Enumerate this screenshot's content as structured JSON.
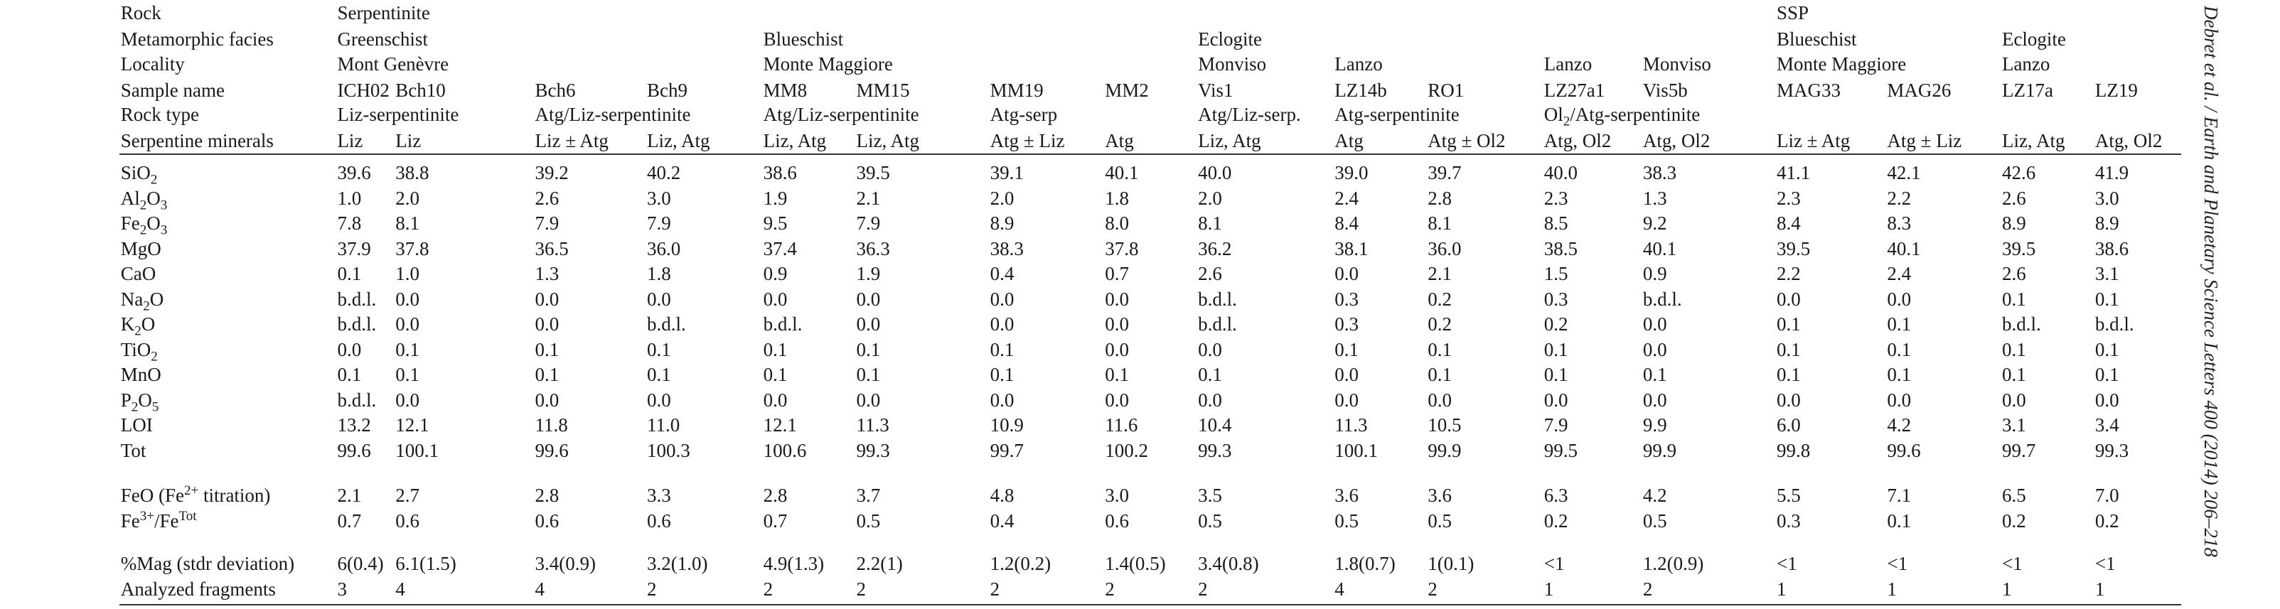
{
  "table": {
    "header_rows": [
      {
        "label": "Rock",
        "cells": [
          "Serpentinite",
          null,
          null,
          null,
          null,
          null,
          null,
          null,
          null,
          null,
          null,
          null,
          null,
          "SSP",
          null,
          null,
          null
        ]
      },
      {
        "label": "Metamorphic facies",
        "cells": [
          "Greenschist",
          null,
          null,
          null,
          "Blueschist",
          null,
          null,
          null,
          "Eclogite",
          null,
          null,
          null,
          null,
          "Blueschist",
          null,
          "Eclogite",
          null
        ]
      },
      {
        "label": "Locality",
        "cells": [
          "Mont Genèvre",
          null,
          null,
          null,
          "Monte Maggiore",
          null,
          null,
          null,
          "Monviso",
          "Lanzo",
          null,
          "Lanzo",
          "Monviso",
          "Monte Maggiore",
          null,
          "Lanzo",
          null
        ]
      },
      {
        "label": "Sample name",
        "cells": [
          "ICH02",
          "Bch10",
          "Bch6",
          "Bch9",
          "MM8",
          "MM15",
          "MM19",
          "MM2",
          "Vis1",
          "LZ14b",
          "RO1",
          "LZ27a1",
          "Vis5b",
          "MAG33",
          "MAG26",
          "LZ17a",
          "LZ19"
        ]
      },
      {
        "label": "Rock type",
        "cells": [
          "Liz-serpentinite",
          null,
          "Atg/Liz-serpentinite",
          null,
          "Atg/Liz-serpentinite",
          null,
          "Atg-serp",
          null,
          "Atg/Liz-serp.",
          "Atg-serpentinite",
          null,
          [
            {
              "text": "Ol"
            },
            {
              "sub": "2"
            },
            {
              "text": "/Atg-serpentinite"
            }
          ],
          null,
          null,
          null,
          null,
          null
        ]
      },
      {
        "label": "Serpentine minerals",
        "cells": [
          "Liz",
          "Liz",
          "Liz ± Atg",
          "Liz, Atg",
          "Liz, Atg",
          "Liz, Atg",
          "Atg ± Liz",
          "Atg",
          "Liz, Atg",
          "Atg",
          "Atg ± Ol2",
          "Atg, Ol2",
          "Atg, Ol2",
          "Liz ± Atg",
          "Atg ± Liz",
          "Liz, Atg",
          "Atg, Ol2"
        ]
      }
    ],
    "blocks": [
      [
        {
          "label": [
            {
              "text": "SiO"
            },
            {
              "sub": "2"
            }
          ],
          "values": [
            "39.6",
            "38.8",
            "39.2",
            "40.2",
            "38.6",
            "39.5",
            "39.1",
            "40.1",
            "40.0",
            "39.0",
            "39.7",
            "40.0",
            "38.3",
            "41.1",
            "42.1",
            "42.6",
            "41.9"
          ]
        },
        {
          "label": [
            {
              "text": "Al"
            },
            {
              "sub": "2"
            },
            {
              "text": "O"
            },
            {
              "sub": "3"
            }
          ],
          "values": [
            "1.0",
            "2.0",
            "2.6",
            "3.0",
            "1.9",
            "2.1",
            "2.0",
            "1.8",
            "2.0",
            "2.4",
            "2.8",
            "2.3",
            "1.3",
            "2.3",
            "2.2",
            "2.6",
            "3.0"
          ]
        },
        {
          "label": [
            {
              "text": "Fe"
            },
            {
              "sub": "2"
            },
            {
              "text": "O"
            },
            {
              "sub": "3"
            }
          ],
          "values": [
            "7.8",
            "8.1",
            "7.9",
            "7.9",
            "9.5",
            "7.9",
            "8.9",
            "8.0",
            "8.1",
            "8.4",
            "8.1",
            "8.5",
            "9.2",
            "8.4",
            "8.3",
            "8.9",
            "8.9"
          ]
        },
        {
          "label": "MgO",
          "values": [
            "37.9",
            "37.8",
            "36.5",
            "36.0",
            "37.4",
            "36.3",
            "38.3",
            "37.8",
            "36.2",
            "38.1",
            "36.0",
            "38.5",
            "40.1",
            "39.5",
            "40.1",
            "39.5",
            "38.6"
          ]
        },
        {
          "label": "CaO",
          "values": [
            "0.1",
            "1.0",
            "1.3",
            "1.8",
            "0.9",
            "1.9",
            "0.4",
            "0.7",
            "2.6",
            "0.0",
            "2.1",
            "1.5",
            "0.9",
            "2.2",
            "2.4",
            "2.6",
            "3.1"
          ]
        },
        {
          "label": [
            {
              "text": "Na"
            },
            {
              "sub": "2"
            },
            {
              "text": "O"
            }
          ],
          "values": [
            "b.d.l.",
            "0.0",
            "0.0",
            "0.0",
            "0.0",
            "0.0",
            "0.0",
            "0.0",
            "b.d.l.",
            "0.3",
            "0.2",
            "0.3",
            "b.d.l.",
            "0.0",
            "0.0",
            "0.1",
            "0.1"
          ]
        },
        {
          "label": [
            {
              "text": "K"
            },
            {
              "sub": "2"
            },
            {
              "text": "O"
            }
          ],
          "values": [
            "b.d.l.",
            "0.0",
            "0.0",
            "b.d.l.",
            "b.d.l.",
            "0.0",
            "0.0",
            "0.0",
            "b.d.l.",
            "0.3",
            "0.2",
            "0.2",
            "0.0",
            "0.1",
            "0.1",
            "b.d.l.",
            "b.d.l."
          ]
        },
        {
          "label": [
            {
              "text": "TiO"
            },
            {
              "sub": "2"
            }
          ],
          "values": [
            "0.0",
            "0.1",
            "0.1",
            "0.1",
            "0.1",
            "0.1",
            "0.1",
            "0.0",
            "0.0",
            "0.1",
            "0.1",
            "0.1",
            "0.0",
            "0.1",
            "0.1",
            "0.1",
            "0.1"
          ]
        },
        {
          "label": "MnO",
          "values": [
            "0.1",
            "0.1",
            "0.1",
            "0.1",
            "0.1",
            "0.1",
            "0.1",
            "0.1",
            "0.1",
            "0.0",
            "0.1",
            "0.1",
            "0.1",
            "0.1",
            "0.1",
            "0.1",
            "0.1"
          ]
        },
        {
          "label": [
            {
              "text": "P"
            },
            {
              "sub": "2"
            },
            {
              "text": "O"
            },
            {
              "sub": "5"
            }
          ],
          "values": [
            "b.d.l.",
            "0.0",
            "0.0",
            "0.0",
            "0.0",
            "0.0",
            "0.0",
            "0.0",
            "0.0",
            "0.0",
            "0.0",
            "0.0",
            "0.0",
            "0.0",
            "0.0",
            "0.0",
            "0.0"
          ]
        },
        {
          "label": "LOI",
          "values": [
            "13.2",
            "12.1",
            "11.8",
            "11.0",
            "12.1",
            "11.3",
            "10.9",
            "11.6",
            "10.4",
            "11.3",
            "10.5",
            "7.9",
            "9.9",
            "6.0",
            "4.2",
            "3.1",
            "3.4"
          ]
        },
        {
          "label": "Tot",
          "values": [
            "99.6",
            "100.1",
            "99.6",
            "100.3",
            "100.6",
            "99.3",
            "99.7",
            "100.2",
            "99.3",
            "100.1",
            "99.9",
            "99.5",
            "99.9",
            "99.8",
            "99.6",
            "99.7",
            "99.3"
          ]
        }
      ],
      [
        {
          "label": [
            {
              "text": "FeO (Fe"
            },
            {
              "sup": "2+"
            },
            {
              "text": " titration)"
            }
          ],
          "values": [
            "2.1",
            "2.7",
            "2.8",
            "3.3",
            "2.8",
            "3.7",
            "4.8",
            "3.0",
            "3.5",
            "3.6",
            "3.6",
            "6.3",
            "4.2",
            "5.5",
            "7.1",
            "6.5",
            "7.0"
          ]
        },
        {
          "label": [
            {
              "text": "Fe"
            },
            {
              "sup": "3+"
            },
            {
              "text": "/Fe"
            },
            {
              "sup": "Tot"
            }
          ],
          "values": [
            "0.7",
            "0.6",
            "0.6",
            "0.6",
            "0.7",
            "0.5",
            "0.4",
            "0.6",
            "0.5",
            "0.5",
            "0.5",
            "0.2",
            "0.5",
            "0.3",
            "0.1",
            "0.2",
            "0.2"
          ]
        }
      ],
      [
        {
          "label": "%Mag (stdr deviation)",
          "values": [
            "6(0.4)",
            "6.1(1.5)",
            "3.4(0.9)",
            "3.2(1.0)",
            "4.9(1.3)",
            "2.2(1)",
            "1.2(0.2)",
            "1.4(0.5)",
            "3.4(0.8)",
            "1.8(0.7)",
            "1(0.1)",
            "<1",
            "1.2(0.9)",
            "<1",
            "<1",
            "<1",
            "<1"
          ]
        },
        {
          "label": "Analyzed fragments",
          "values": [
            "3",
            "4",
            "4",
            "2",
            "2",
            "2",
            "2",
            "2",
            "2",
            "4",
            "2",
            "1",
            "2",
            "1",
            "1",
            "1",
            "1"
          ]
        }
      ]
    ]
  },
  "journal": {
    "citation": "Debret et al. / Earth and Planetary Science Letters 400 (2014) 206–218"
  }
}
